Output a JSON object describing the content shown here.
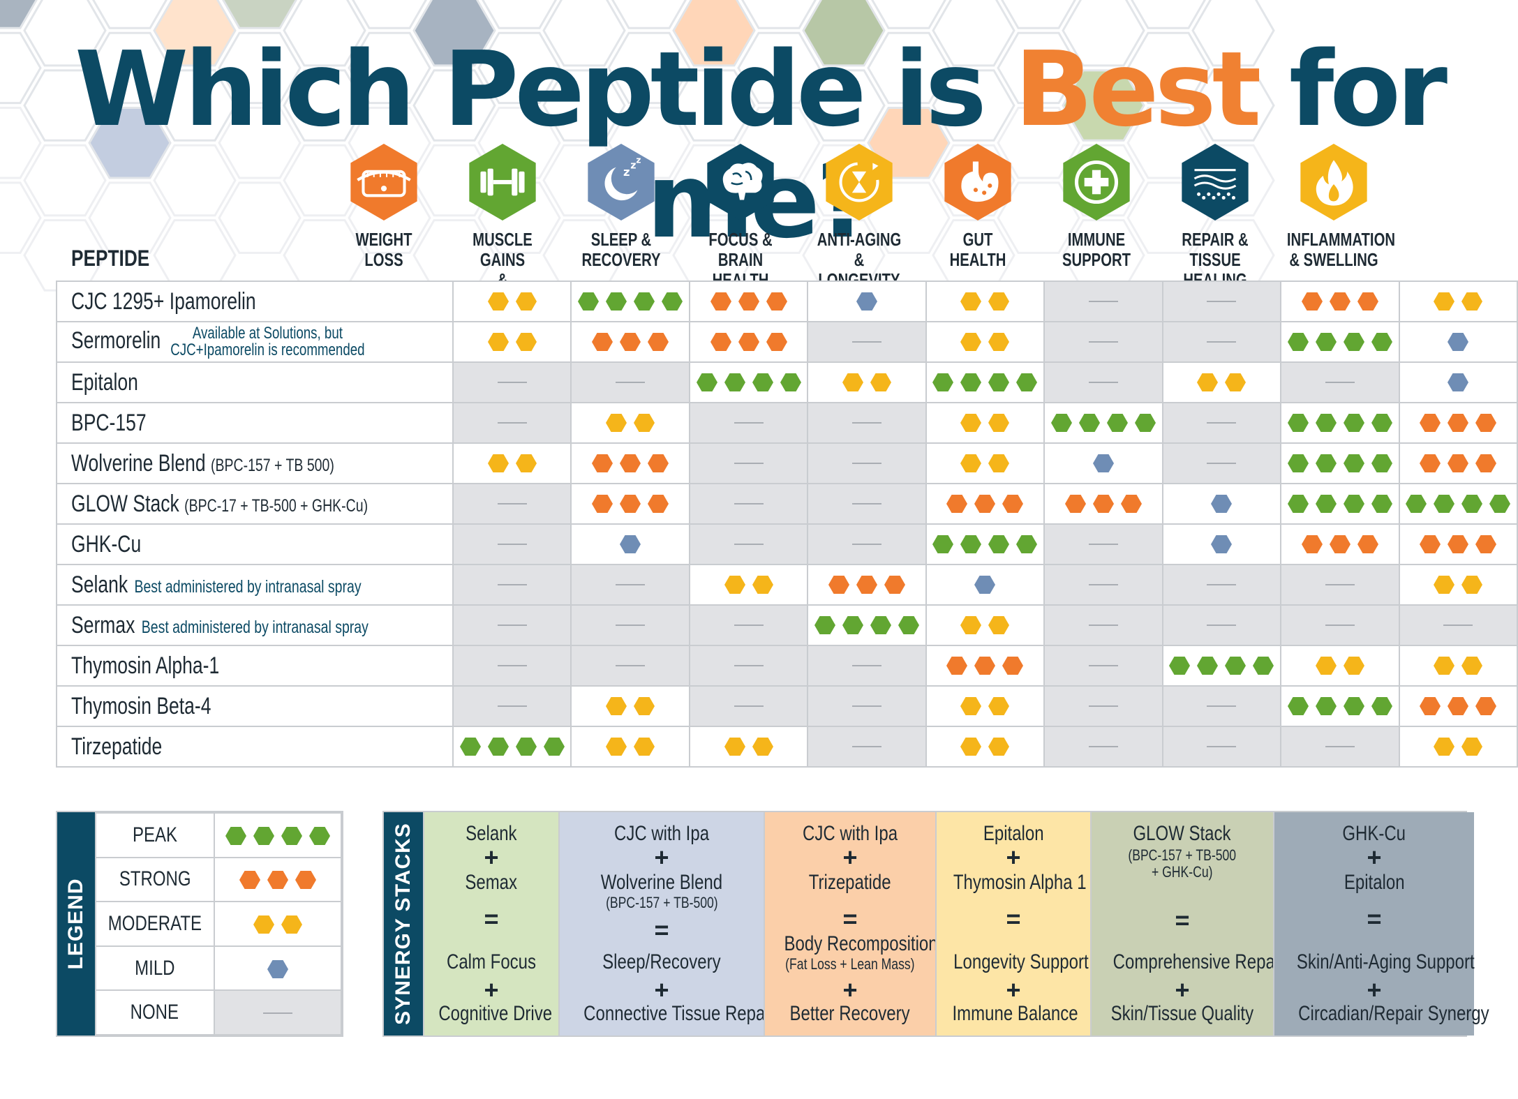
{
  "title": {
    "part1": "Which Peptide is ",
    "accent": "Best",
    "part2": " for me?"
  },
  "colors": {
    "navy": "#0c4a64",
    "orange": "#f08132",
    "peak": "#62a632",
    "strong": "#f07a2c",
    "moderate": "#f5b51a",
    "mild": "#6f8db5",
    "none_bg": "#e1e2e5"
  },
  "table": {
    "peptide_header": "PEPTIDE",
    "categories": [
      {
        "label": "WEIGHT\nLOSS",
        "icon": "tape-measure-icon",
        "color": "#f07a2c"
      },
      {
        "label": "MUSCLE GAINS\n& PERFORMANCE",
        "icon": "dumbbell-icon",
        "color": "#62a632"
      },
      {
        "label": "SLEEP &\nRECOVERY",
        "icon": "moon-zzz-icon",
        "color": "#6f8db5"
      },
      {
        "label": "FOCUS &\nBRAIN HEALTH",
        "icon": "brain-icon",
        "color": "#0c4a64"
      },
      {
        "label": "ANTI-AGING\n& LONGEVITY",
        "icon": "hourglass-icon",
        "color": "#f5b51a"
      },
      {
        "label": "GUT\nHEALTH",
        "icon": "stomach-icon",
        "color": "#f07a2c"
      },
      {
        "label": "IMMUNE\nSUPPORT",
        "icon": "medical-cross-icon",
        "color": "#62a632"
      },
      {
        "label": "REPAIR &\nTISSUE HEALING",
        "icon": "skin-layers-icon",
        "color": "#0c4a64"
      },
      {
        "label": "INFLAMMATION\n& SWELLING",
        "icon": "flame-icon",
        "color": "#f5b51a"
      }
    ],
    "rows": [
      {
        "name": "CJC 1295+ Ipamorelin",
        "small": "",
        "note": "",
        "note_block": "",
        "ratings": [
          2,
          4,
          3,
          1,
          2,
          0,
          0,
          3,
          2
        ]
      },
      {
        "name": "Sermorelin",
        "small": "",
        "note": "",
        "note_block": "Available at Solutions, but\nCJC+Ipamorelin is recommended",
        "ratings": [
          2,
          3,
          3,
          0,
          2,
          0,
          0,
          4,
          1
        ]
      },
      {
        "name": "Epitalon",
        "small": "",
        "note": "",
        "note_block": "",
        "ratings": [
          0,
          0,
          4,
          2,
          4,
          0,
          2,
          0,
          1
        ]
      },
      {
        "name": "BPC-157",
        "small": "",
        "note": "",
        "note_block": "",
        "ratings": [
          0,
          2,
          0,
          0,
          2,
          4,
          0,
          4,
          3
        ]
      },
      {
        "name": "Wolverine Blend",
        "small": "(BPC-157 + TB 500)",
        "note": "",
        "note_block": "",
        "ratings": [
          2,
          3,
          0,
          0,
          2,
          1,
          0,
          4,
          3
        ]
      },
      {
        "name": "GLOW Stack",
        "small": "(BPC-17 + TB-500 + GHK-Cu)",
        "note": "",
        "note_block": "",
        "ratings": [
          0,
          3,
          0,
          0,
          3,
          3,
          1,
          4,
          4
        ]
      },
      {
        "name": "GHK-Cu",
        "small": "",
        "note": "",
        "note_block": "",
        "ratings": [
          0,
          1,
          0,
          0,
          4,
          0,
          1,
          3,
          3
        ]
      },
      {
        "name": "Selank",
        "small": "",
        "note": "Best administered by intranasal spray",
        "note_block": "",
        "ratings": [
          0,
          0,
          2,
          3,
          1,
          0,
          0,
          0,
          2
        ]
      },
      {
        "name": "Sermax",
        "small": "",
        "note": "Best administered by intranasal spray",
        "note_block": "",
        "ratings": [
          0,
          0,
          0,
          4,
          2,
          0,
          0,
          0,
          0
        ]
      },
      {
        "name": "Thymosin Alpha-1",
        "small": "",
        "note": "",
        "note_block": "",
        "ratings": [
          0,
          0,
          0,
          0,
          3,
          0,
          4,
          2,
          2
        ]
      },
      {
        "name": "Thymosin Beta-4",
        "small": "",
        "note": "",
        "note_block": "",
        "ratings": [
          0,
          2,
          0,
          0,
          2,
          0,
          0,
          4,
          3
        ]
      },
      {
        "name": "Tirzepatide",
        "small": "",
        "note": "",
        "note_block": "",
        "ratings": [
          4,
          2,
          2,
          0,
          2,
          0,
          0,
          0,
          2
        ]
      }
    ]
  },
  "legend": {
    "title": "LEGEND",
    "levels": [
      {
        "label": "PEAK",
        "rating": 4
      },
      {
        "label": "STRONG",
        "rating": 3
      },
      {
        "label": "MODERATE",
        "rating": 2
      },
      {
        "label": "MILD",
        "rating": 1
      },
      {
        "label": "NONE",
        "rating": 0
      }
    ]
  },
  "stacks": {
    "title": "SYNERGY STACKS",
    "items": [
      {
        "a": "Selank",
        "a_sub": "",
        "b": "Semax",
        "b_sub": "",
        "r1": "Calm Focus",
        "r1_sub": "",
        "r2": "Cognitive Drive",
        "bg": "#d5e5c0"
      },
      {
        "a": "CJC with Ipa",
        "a_sub": "",
        "b": "Wolverine Blend",
        "b_sub": "(BPC-157 + TB-500)",
        "r1": "Sleep/Recovery",
        "r1_sub": "",
        "r2": "Connective Tissue Repair",
        "bg": "#cdd5e5"
      },
      {
        "a": "CJC with Ipa",
        "a_sub": "",
        "b": "Trizepatide",
        "b_sub": "",
        "r1": "Body Recomposition",
        "r1_sub": "(Fat Loss + Lean Mass)",
        "r2": "Better Recovery",
        "bg": "#fbcfa9"
      },
      {
        "a": "Epitalon",
        "a_sub": "",
        "b": "Thymosin Alpha 1",
        "b_sub": "",
        "r1": "Longevity Support",
        "r1_sub": "",
        "r2": "Immune Balance",
        "bg": "#fde5a6"
      },
      {
        "a": "GLOW Stack",
        "a_sub": "(BPC-157 + TB-500\n+ GHK-Cu)",
        "b": "",
        "b_sub": "",
        "r1": "Comprehensive Repair",
        "r1_sub": "",
        "r2": "Skin/Tissue Quality",
        "bg": "#c9d0b4"
      },
      {
        "a": "GHK-Cu",
        "a_sub": "",
        "b": "Epitalon",
        "b_sub": "",
        "r1": "Skin/Anti-Aging Support",
        "r1_sub": "",
        "r2": "Circadian/Repair Synergy",
        "bg": "#9eabb7"
      }
    ],
    "plus": "+",
    "equals": "="
  }
}
